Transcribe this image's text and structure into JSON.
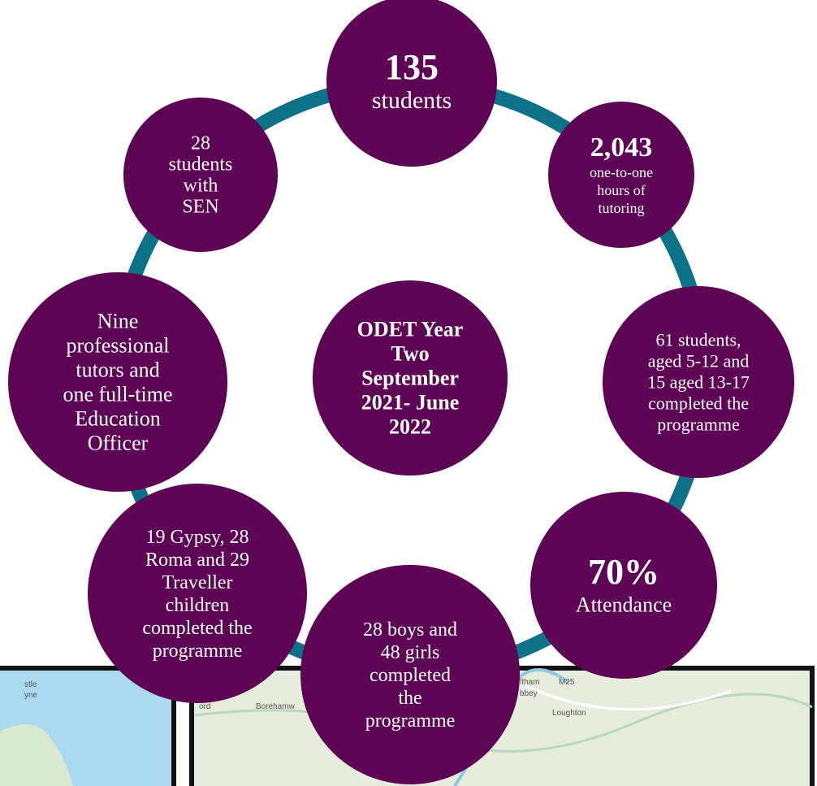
{
  "center": {
    "lines": [
      "ODET Year",
      "Two",
      "September",
      "2021- June",
      "2022"
    ]
  },
  "nodes": [
    {
      "number": "135",
      "lines": [
        "students"
      ]
    },
    {
      "number": "2,043",
      "lines": [
        "one-to-one",
        "hours of",
        "tutoring"
      ]
    },
    {
      "lines": [
        "61 students,",
        "aged 5-12 and",
        "15 aged 13-17",
        "completed the",
        "programme"
      ]
    },
    {
      "number": "70%",
      "lines": [
        "Attendance"
      ]
    },
    {
      "lines": [
        "28 boys and",
        "48 girls",
        "completed",
        "the",
        "programme"
      ]
    },
    {
      "lines": [
        "19 Gypsy, 28",
        "Roma  and 29",
        "Traveller",
        "children",
        "completed the",
        "programme"
      ]
    },
    {
      "lines": [
        "Nine",
        "professional",
        "tutors and",
        "one full-time",
        "Education",
        "Officer"
      ]
    },
    {
      "lines": [
        "28",
        "students",
        "with",
        "SEN"
      ]
    }
  ],
  "maps": {
    "left": [
      "stle",
      "yne"
    ],
    "right": [
      "ord",
      "Borehamw",
      "Loughton",
      "ltham",
      "M25",
      "bbey"
    ]
  }
}
